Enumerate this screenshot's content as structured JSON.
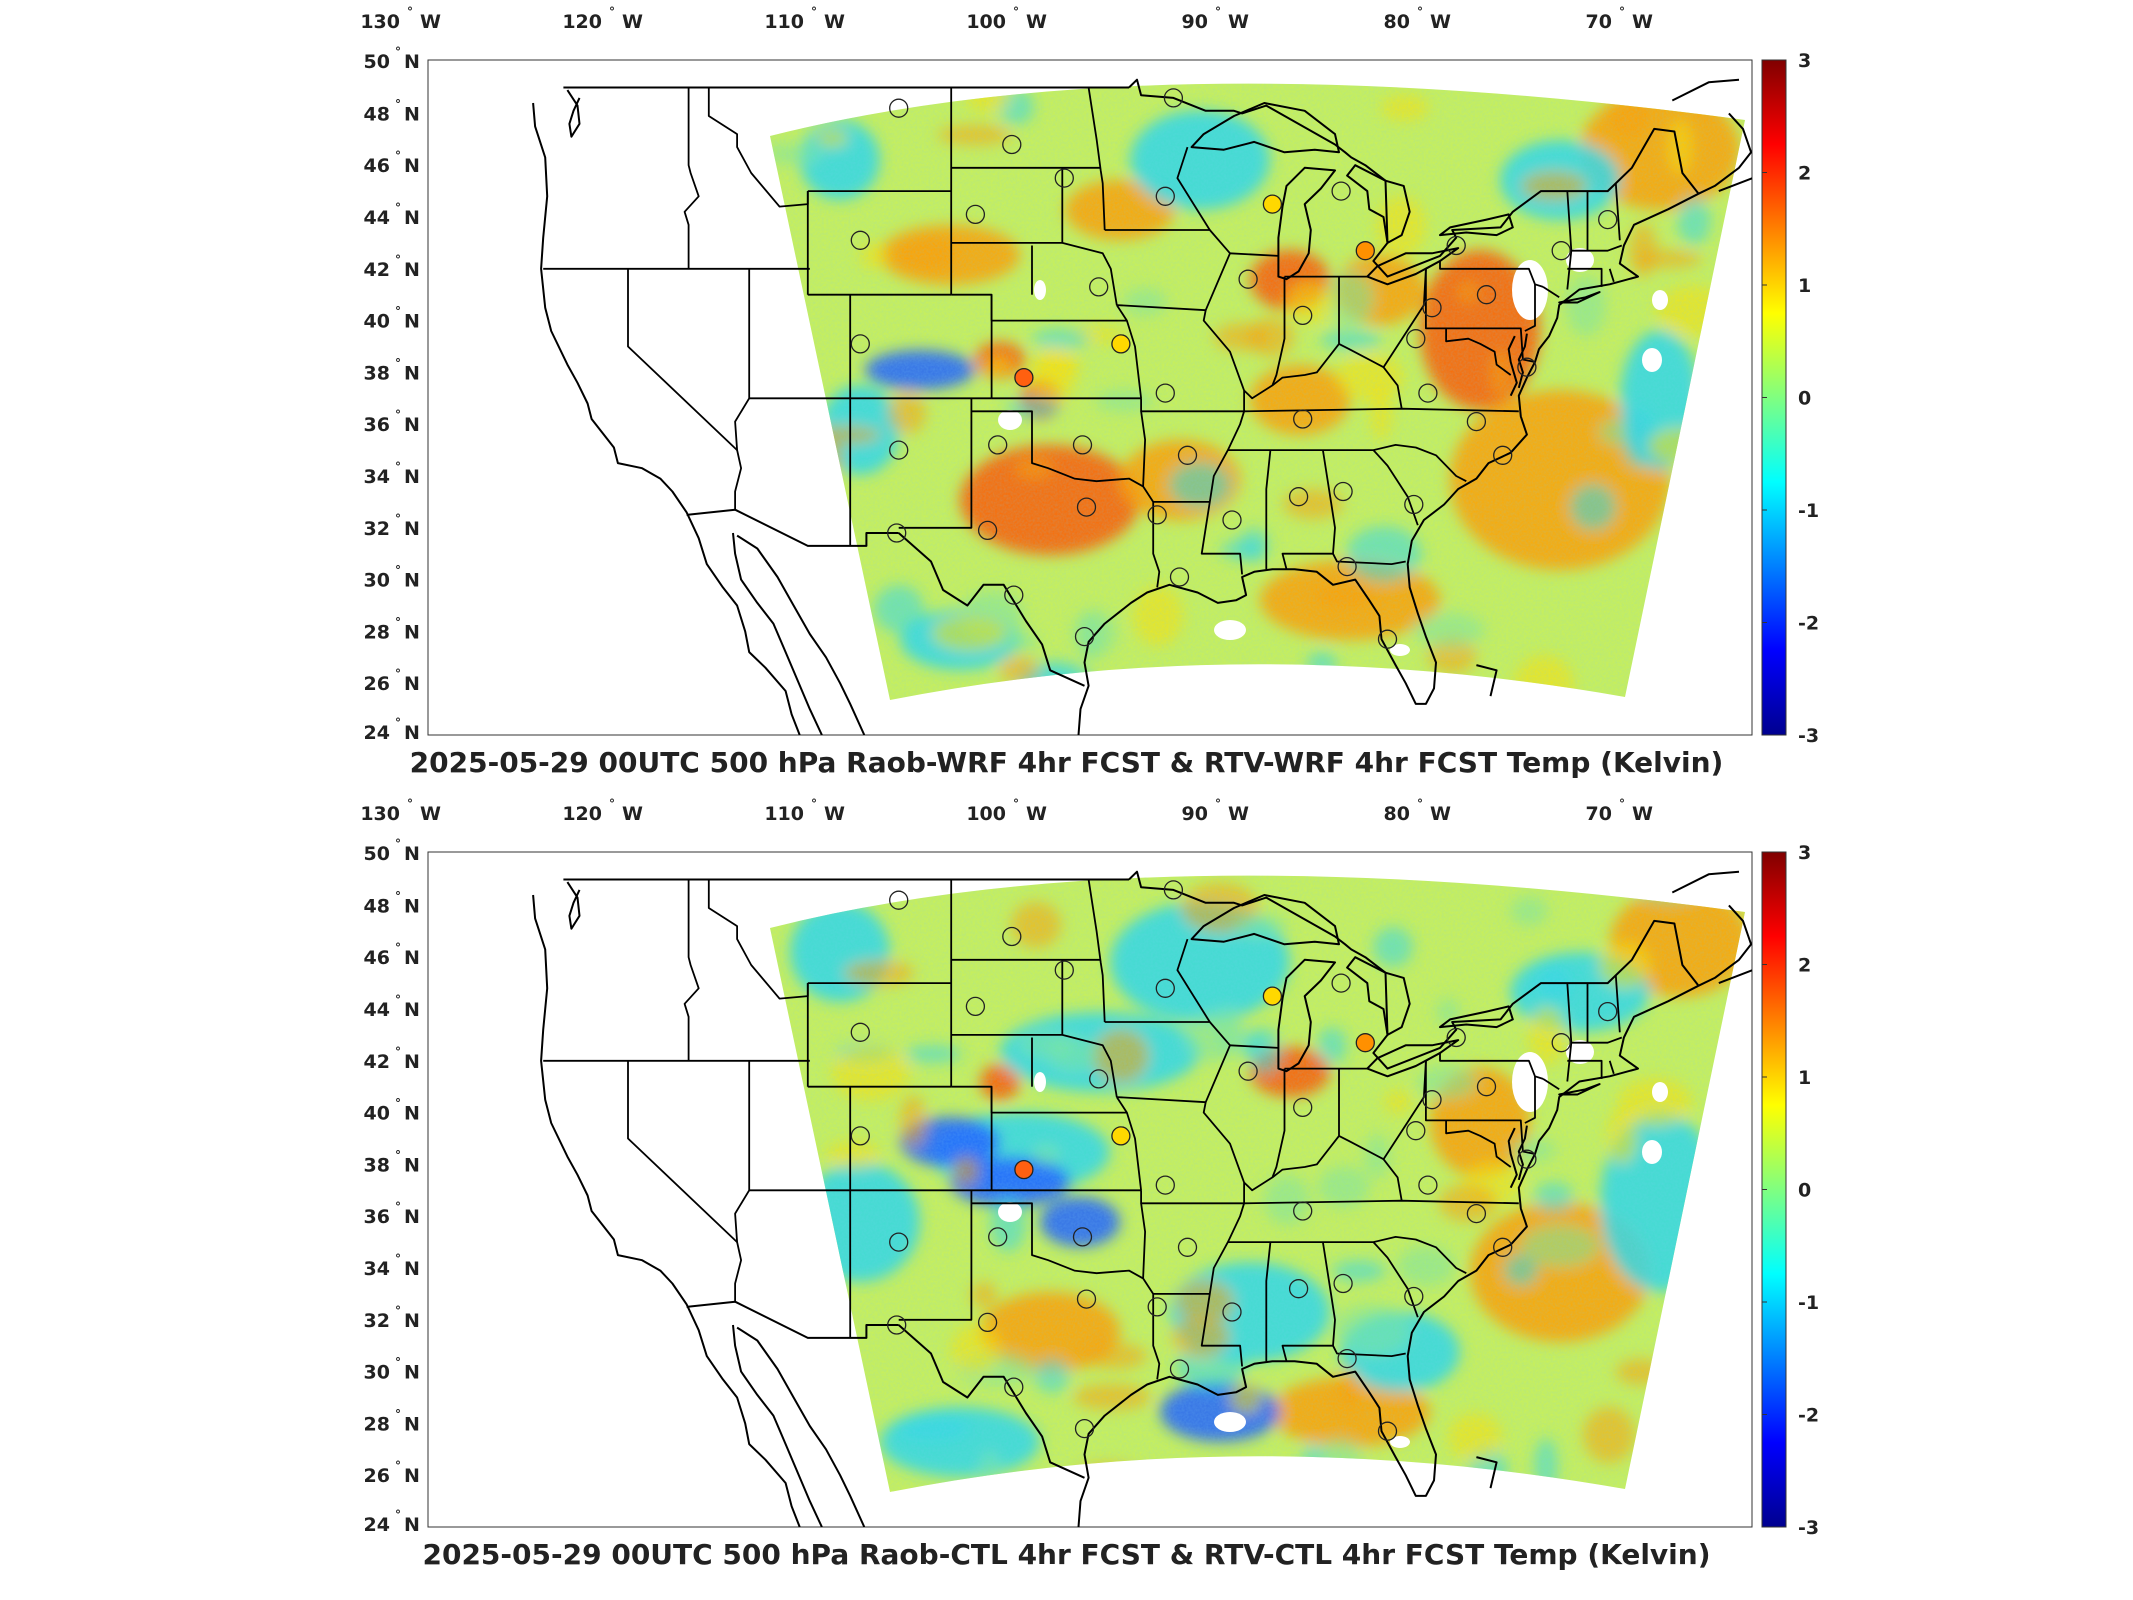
{
  "panels": [
    {
      "title": "2025-05-29 00UTC 500 hPa Raob-WRF 4hr FCST & RTV-WRF 4hr FCST Temp (Kelvin)",
      "variant": "wrf"
    },
    {
      "title": "2025-05-29 00UTC 500 hPa Raob-CTL 4hr FCST & RTV-CTL 4hr FCST Temp (Kelvin)",
      "variant": "ctl"
    }
  ],
  "longitude_ticks": [
    {
      "num": "130",
      "hemi": "W",
      "value": -130
    },
    {
      "num": "120",
      "hemi": "W",
      "value": -120
    },
    {
      "num": "110",
      "hemi": "W",
      "value": -110
    },
    {
      "num": "100",
      "hemi": "W",
      "value": -100
    },
    {
      "num": "90",
      "hemi": "W",
      "value": -90
    },
    {
      "num": "80",
      "hemi": "W",
      "value": -80
    },
    {
      "num": "70",
      "hemi": "W",
      "value": -70
    }
  ],
  "latitude_ticks": [
    {
      "num": "50",
      "hemi": "N",
      "value": 50
    },
    {
      "num": "48",
      "hemi": "N",
      "value": 48
    },
    {
      "num": "46",
      "hemi": "N",
      "value": 46
    },
    {
      "num": "44",
      "hemi": "N",
      "value": 44
    },
    {
      "num": "42",
      "hemi": "N",
      "value": 42
    },
    {
      "num": "40",
      "hemi": "N",
      "value": 40
    },
    {
      "num": "38",
      "hemi": "N",
      "value": 38
    },
    {
      "num": "36",
      "hemi": "N",
      "value": 36
    },
    {
      "num": "34",
      "hemi": "N",
      "value": 34
    },
    {
      "num": "32",
      "hemi": "N",
      "value": 32
    },
    {
      "num": "30",
      "hemi": "N",
      "value": 30
    },
    {
      "num": "28",
      "hemi": "N",
      "value": 28
    },
    {
      "num": "26",
      "hemi": "N",
      "value": 26
    },
    {
      "num": "24",
      "hemi": "N",
      "value": 24
    }
  ],
  "colorbar": {
    "min": -3,
    "max": 3,
    "ticks": [
      "3",
      "2",
      "1",
      "0",
      "-1",
      "-2",
      "-3"
    ],
    "colors": [
      "#00008f",
      "#0000ff",
      "#0080ff",
      "#00ffff",
      "#80ff80",
      "#ffff00",
      "#ff8000",
      "#ff0000",
      "#800000"
    ]
  },
  "map_colors": {
    "field_base": "#c8f05a",
    "warm": "#ffa000",
    "hot": "#ff5a00",
    "cool": "#30d8e8",
    "cold": "#2060ff",
    "outline": "#000000"
  },
  "stations": [
    {
      "lon": -106.6,
      "lat": 48.2
    },
    {
      "lon": -101.0,
      "lat": 46.8
    },
    {
      "lon": -98.4,
      "lat": 45.5
    },
    {
      "lon": -93.4,
      "lat": 44.8
    },
    {
      "lon": -93.0,
      "lat": 48.6
    },
    {
      "lon": -108.5,
      "lat": 43.1
    },
    {
      "lon": -102.8,
      "lat": 44.1
    },
    {
      "lon": -96.7,
      "lat": 41.3
    },
    {
      "lon": -89.3,
      "lat": 41.6
    },
    {
      "lon": -88.1,
      "lat": 44.5
    },
    {
      "lon": -84.7,
      "lat": 45.0
    },
    {
      "lon": -83.5,
      "lat": 42.7
    },
    {
      "lon": -79.0,
      "lat": 42.9
    },
    {
      "lon": -71.5,
      "lat": 43.9
    },
    {
      "lon": -73.8,
      "lat": 42.7
    },
    {
      "lon": -80.2,
      "lat": 40.5
    },
    {
      "lon": -86.6,
      "lat": 40.2
    },
    {
      "lon": -81.0,
      "lat": 39.3
    },
    {
      "lon": -108.5,
      "lat": 39.1
    },
    {
      "lon": -100.4,
      "lat": 37.8
    },
    {
      "lon": -95.6,
      "lat": 39.1
    },
    {
      "lon": -93.4,
      "lat": 37.2
    },
    {
      "lon": -86.6,
      "lat": 36.2
    },
    {
      "lon": -80.4,
      "lat": 37.2
    },
    {
      "lon": -78.0,
      "lat": 36.1
    },
    {
      "lon": -106.6,
      "lat": 35.0
    },
    {
      "lon": -101.7,
      "lat": 35.2
    },
    {
      "lon": -97.5,
      "lat": 35.2
    },
    {
      "lon": -92.3,
      "lat": 34.8
    },
    {
      "lon": -97.3,
      "lat": 32.8
    },
    {
      "lon": -102.2,
      "lat": 31.9
    },
    {
      "lon": -106.7,
      "lat": 31.8
    },
    {
      "lon": -93.8,
      "lat": 32.5
    },
    {
      "lon": -90.1,
      "lat": 32.3
    },
    {
      "lon": -86.8,
      "lat": 33.2
    },
    {
      "lon": -84.6,
      "lat": 33.4
    },
    {
      "lon": -81.1,
      "lat": 32.9
    },
    {
      "lon": -76.7,
      "lat": 34.8
    },
    {
      "lon": -75.5,
      "lat": 38.2
    },
    {
      "lon": -100.9,
      "lat": 29.4
    },
    {
      "lon": -97.4,
      "lat": 27.8
    },
    {
      "lon": -92.7,
      "lat": 30.1
    },
    {
      "lon": -84.4,
      "lat": 30.5
    },
    {
      "lon": -82.4,
      "lat": 27.7
    },
    {
      "lon": -77.5,
      "lat": 41.0
    }
  ]
}
